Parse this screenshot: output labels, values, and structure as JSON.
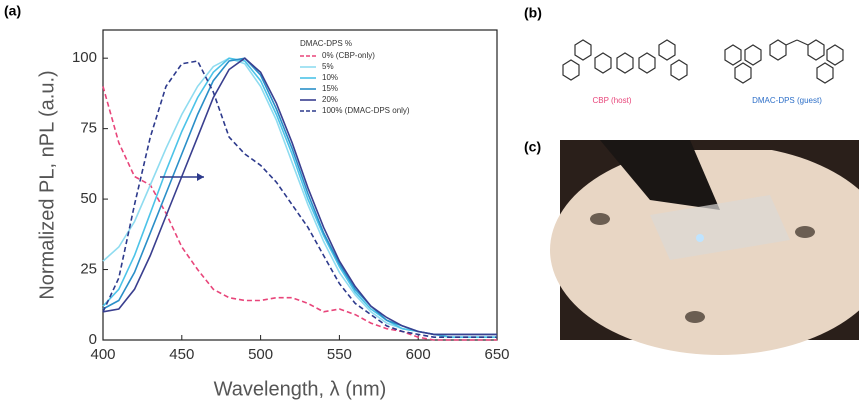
{
  "panel_labels": {
    "a": "(a)",
    "b": "(b)",
    "c": "(c)"
  },
  "molecules": {
    "host": "CBP (host)",
    "guest": "DMAC-DPS (guest)"
  },
  "chart_data": {
    "type": "line",
    "ylabel": "Normalized PL, nPL (a.u.)",
    "xlabel": "Wavelength, λ (nm)",
    "legend_title": "DMAC-DPS %",
    "x": [
      400,
      410,
      420,
      430,
      440,
      450,
      460,
      470,
      480,
      490,
      500,
      510,
      520,
      530,
      540,
      550,
      560,
      570,
      580,
      590,
      600,
      610,
      620,
      630,
      640,
      650
    ],
    "series": [
      {
        "name": "0% (CBP-only)",
        "color": "#e8457a",
        "style": "dashed",
        "values": [
          90,
          70,
          58,
          55,
          45,
          33,
          25,
          18,
          15,
          14,
          14,
          15,
          15,
          13,
          10,
          11,
          9,
          6,
          4,
          3,
          1,
          0,
          0,
          0,
          0,
          0
        ]
      },
      {
        "name": "5%",
        "color": "#8fdcf0",
        "style": "solid",
        "values": [
          28,
          33,
          42,
          55,
          68,
          80,
          90,
          97,
          100,
          98,
          90,
          78,
          63,
          48,
          35,
          24,
          16,
          10,
          6,
          4,
          3,
          2,
          1,
          1,
          1,
          1
        ]
      },
      {
        "name": "10%",
        "color": "#4cc3e8",
        "style": "solid",
        "values": [
          12,
          18,
          30,
          45,
          60,
          74,
          86,
          95,
          100,
          99,
          92,
          80,
          66,
          50,
          37,
          26,
          17,
          11,
          7,
          4,
          3,
          2,
          1,
          1,
          1,
          1
        ]
      },
      {
        "name": "15%",
        "color": "#2a8fc8",
        "style": "solid",
        "values": [
          11,
          14,
          24,
          38,
          52,
          66,
          80,
          92,
          99,
          100,
          94,
          82,
          68,
          52,
          38,
          27,
          18,
          12,
          7,
          5,
          3,
          2,
          2,
          2,
          2,
          2
        ]
      },
      {
        "name": "20%",
        "color": "#3a3f8f",
        "style": "solid",
        "values": [
          10,
          11,
          18,
          30,
          44,
          58,
          72,
          86,
          96,
          100,
          95,
          84,
          70,
          54,
          40,
          28,
          19,
          12,
          8,
          5,
          3,
          2,
          2,
          2,
          2,
          2
        ]
      },
      {
        "name": "100% (DMAC-DPS only)",
        "color": "#2d3a8c",
        "style": "dashed",
        "values": [
          10,
          22,
          48,
          72,
          90,
          98,
          99,
          88,
          72,
          66,
          62,
          56,
          48,
          40,
          30,
          20,
          13,
          9,
          5,
          3,
          2,
          1,
          1,
          1,
          1,
          1
        ]
      }
    ],
    "xlim": [
      400,
      650
    ],
    "xticks": [
      400,
      450,
      500,
      550,
      600,
      650
    ],
    "ylim": [
      0,
      110
    ],
    "yticks": [
      0,
      25,
      50,
      75,
      100
    ]
  }
}
